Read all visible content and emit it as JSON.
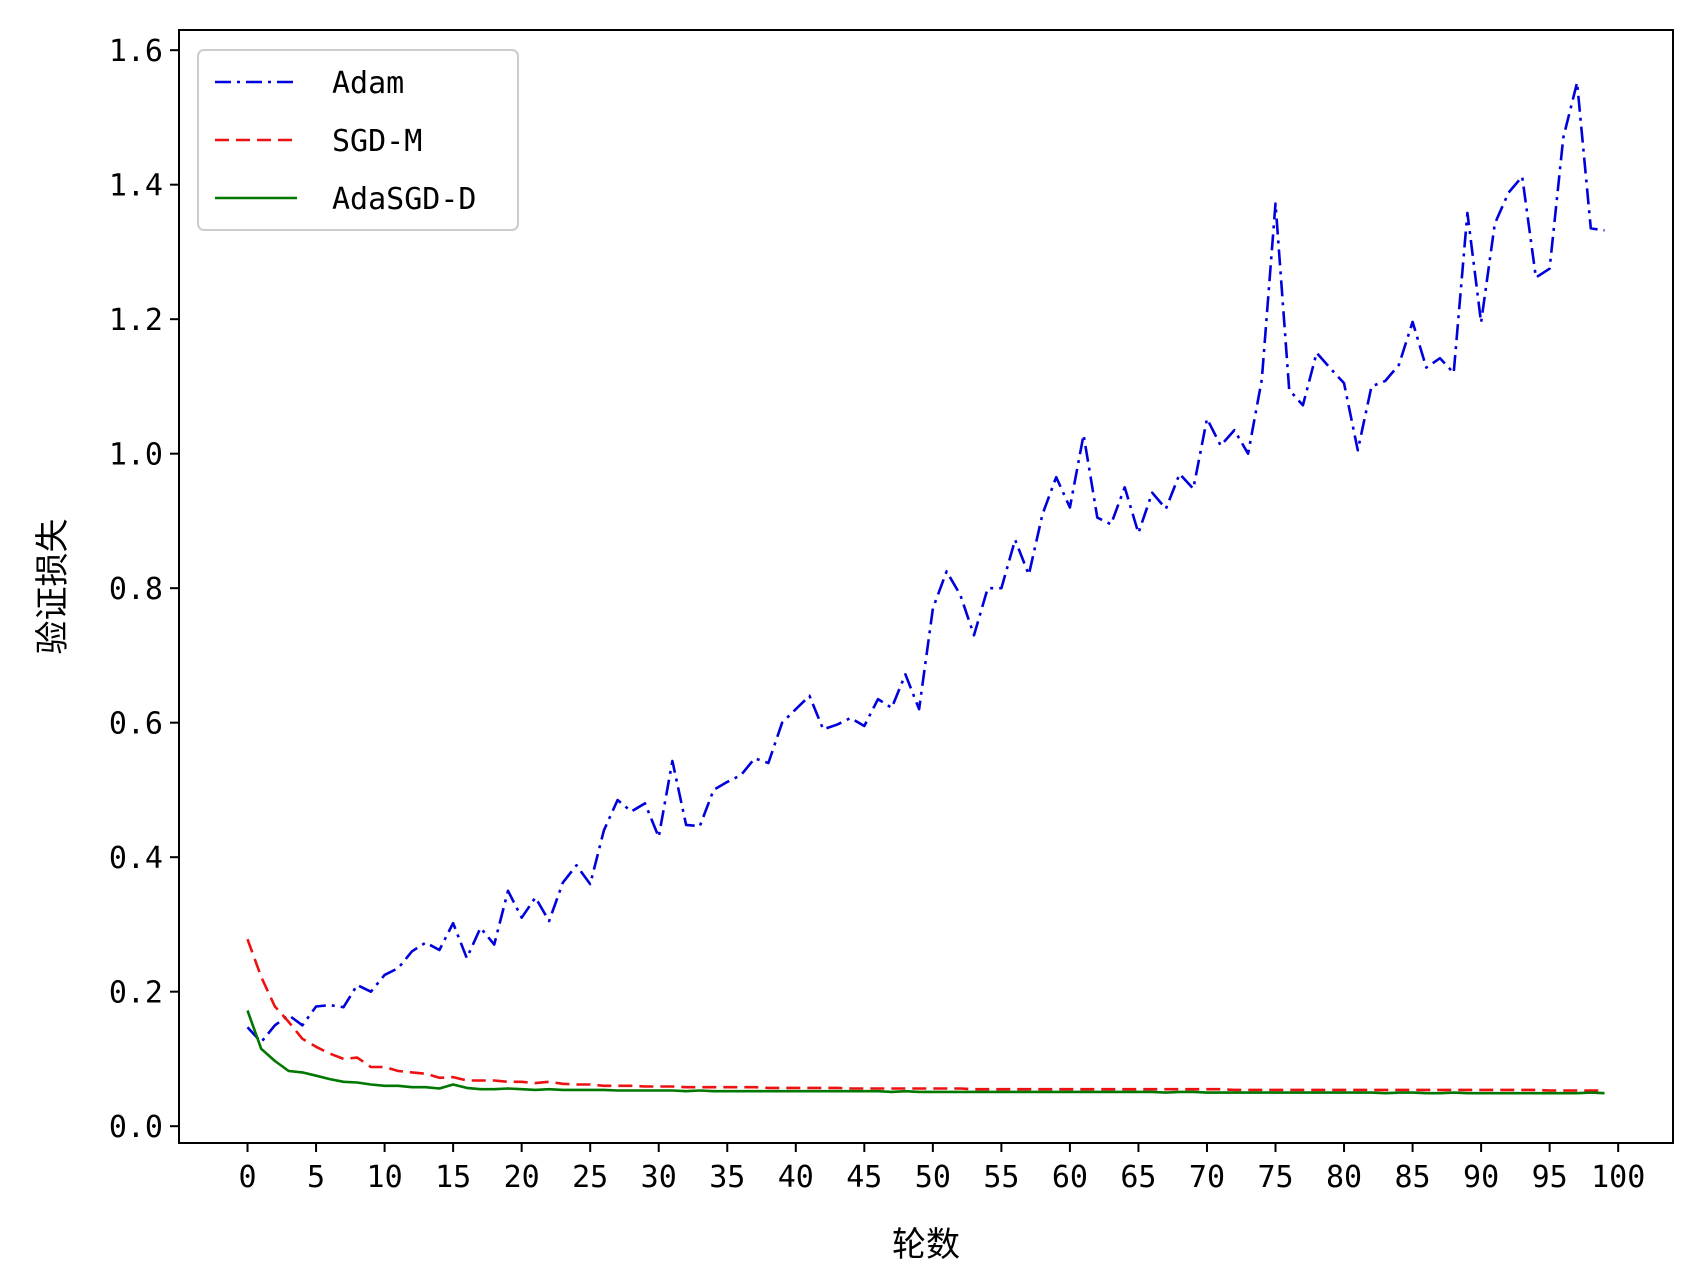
{
  "chart_data": {
    "type": "line",
    "title": "",
    "xlabel": "轮数",
    "ylabel": "验证损失",
    "xlim": [
      -5,
      104
    ],
    "ylim": [
      -0.025,
      1.63
    ],
    "xticks": [
      0,
      5,
      10,
      15,
      20,
      25,
      30,
      35,
      40,
      45,
      50,
      55,
      60,
      65,
      70,
      75,
      80,
      85,
      90,
      95,
      100
    ],
    "yticks": [
      0.0,
      0.2,
      0.4,
      0.6,
      0.8,
      1.0,
      1.2,
      1.4,
      1.6
    ],
    "ytick_labels": [
      "0.0",
      "0.2",
      "0.4",
      "0.6",
      "0.8",
      "1.0",
      "1.2",
      "1.4",
      "1.6"
    ],
    "xtick_labels": [
      "0",
      "5",
      "10",
      "15",
      "20",
      "25",
      "30",
      "35",
      "40",
      "45",
      "50",
      "55",
      "60",
      "65",
      "70",
      "75",
      "80",
      "85",
      "90",
      "95",
      "100"
    ],
    "grid": false,
    "legend_position": "top-left",
    "x": [
      0,
      1,
      2,
      3,
      4,
      5,
      6,
      7,
      8,
      9,
      10,
      11,
      12,
      13,
      14,
      15,
      16,
      17,
      18,
      19,
      20,
      21,
      22,
      23,
      24,
      25,
      26,
      27,
      28,
      29,
      30,
      31,
      32,
      33,
      34,
      35,
      36,
      37,
      38,
      39,
      40,
      41,
      42,
      43,
      44,
      45,
      46,
      47,
      48,
      49,
      50,
      51,
      52,
      53,
      54,
      55,
      56,
      57,
      58,
      59,
      60,
      61,
      62,
      63,
      64,
      65,
      66,
      67,
      68,
      69,
      70,
      71,
      72,
      73,
      74,
      75,
      76,
      77,
      78,
      79,
      80,
      81,
      82,
      83,
      84,
      85,
      86,
      87,
      88,
      89,
      90,
      91,
      92,
      93,
      94,
      95,
      96,
      97,
      98,
      99
    ],
    "series": [
      {
        "name": "Adam",
        "color": "#0000dd",
        "dash": "dashdot",
        "values": [
          0.147,
          0.125,
          0.15,
          0.165,
          0.15,
          0.178,
          0.18,
          0.177,
          0.21,
          0.2,
          0.225,
          0.235,
          0.26,
          0.273,
          0.262,
          0.302,
          0.25,
          0.295,
          0.27,
          0.35,
          0.31,
          0.34,
          0.305,
          0.362,
          0.388,
          0.36,
          0.44,
          0.485,
          0.468,
          0.48,
          0.43,
          0.543,
          0.448,
          0.446,
          0.5,
          0.512,
          0.522,
          0.547,
          0.54,
          0.6,
          0.62,
          0.64,
          0.59,
          0.597,
          0.607,
          0.595,
          0.635,
          0.622,
          0.672,
          0.62,
          0.77,
          0.825,
          0.79,
          0.73,
          0.8,
          0.8,
          0.872,
          0.82,
          0.91,
          0.965,
          0.92,
          1.028,
          0.905,
          0.895,
          0.95,
          0.882,
          0.942,
          0.918,
          0.97,
          0.948,
          1.052,
          1.012,
          1.035,
          1.0,
          1.11,
          1.372,
          1.095,
          1.072,
          1.15,
          1.127,
          1.105,
          1.005,
          1.1,
          1.108,
          1.132,
          1.196,
          1.128,
          1.142,
          1.12,
          1.358,
          1.195,
          1.342,
          1.388,
          1.412,
          1.262,
          1.275,
          1.47,
          1.552,
          1.335,
          1.332
        ]
      },
      {
        "name": "SGD-M",
        "color": "#ee1111",
        "dash": "dashed",
        "values": [
          0.278,
          0.222,
          0.178,
          0.155,
          0.13,
          0.118,
          0.108,
          0.1,
          0.102,
          0.088,
          0.088,
          0.082,
          0.08,
          0.078,
          0.072,
          0.073,
          0.068,
          0.068,
          0.068,
          0.066,
          0.066,
          0.064,
          0.066,
          0.063,
          0.062,
          0.062,
          0.06,
          0.06,
          0.06,
          0.059,
          0.059,
          0.059,
          0.058,
          0.058,
          0.058,
          0.058,
          0.058,
          0.058,
          0.057,
          0.057,
          0.057,
          0.057,
          0.057,
          0.057,
          0.056,
          0.056,
          0.056,
          0.056,
          0.056,
          0.056,
          0.056,
          0.056,
          0.056,
          0.055,
          0.055,
          0.055,
          0.055,
          0.055,
          0.055,
          0.055,
          0.055,
          0.055,
          0.055,
          0.055,
          0.055,
          0.055,
          0.055,
          0.055,
          0.055,
          0.055,
          0.055,
          0.055,
          0.054,
          0.054,
          0.054,
          0.054,
          0.054,
          0.054,
          0.054,
          0.054,
          0.054,
          0.054,
          0.054,
          0.054,
          0.054,
          0.054,
          0.054,
          0.054,
          0.054,
          0.054,
          0.054,
          0.054,
          0.054,
          0.054,
          0.054,
          0.053,
          0.053,
          0.053,
          0.053,
          0.053
        ]
      },
      {
        "name": "AdaSGD-D",
        "color": "#007700",
        "dash": "solid",
        "values": [
          0.172,
          0.115,
          0.097,
          0.082,
          0.08,
          0.075,
          0.07,
          0.066,
          0.065,
          0.062,
          0.06,
          0.06,
          0.058,
          0.058,
          0.056,
          0.062,
          0.057,
          0.055,
          0.055,
          0.056,
          0.055,
          0.054,
          0.055,
          0.054,
          0.054,
          0.054,
          0.054,
          0.053,
          0.053,
          0.053,
          0.053,
          0.053,
          0.052,
          0.053,
          0.052,
          0.052,
          0.052,
          0.052,
          0.052,
          0.052,
          0.052,
          0.052,
          0.052,
          0.052,
          0.052,
          0.052,
          0.052,
          0.051,
          0.052,
          0.051,
          0.051,
          0.051,
          0.051,
          0.051,
          0.051,
          0.051,
          0.051,
          0.051,
          0.051,
          0.051,
          0.051,
          0.051,
          0.051,
          0.051,
          0.051,
          0.051,
          0.051,
          0.05,
          0.051,
          0.051,
          0.05,
          0.05,
          0.05,
          0.05,
          0.05,
          0.05,
          0.05,
          0.05,
          0.05,
          0.05,
          0.05,
          0.05,
          0.05,
          0.049,
          0.05,
          0.05,
          0.049,
          0.049,
          0.05,
          0.049,
          0.049,
          0.049,
          0.049,
          0.049,
          0.049,
          0.049,
          0.049,
          0.049,
          0.05,
          0.049
        ]
      }
    ]
  }
}
